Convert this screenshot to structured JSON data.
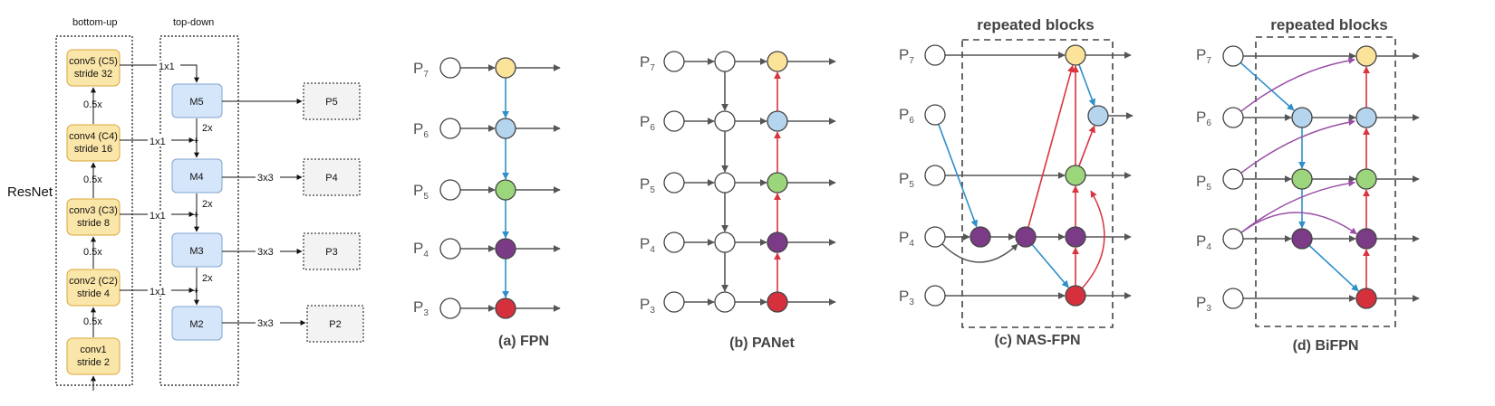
{
  "colors": {
    "yellow": "#fbe39a",
    "blue": "#b5d4ee",
    "green": "#9bd67c",
    "purple": "#7b3b86",
    "red": "#d7303d",
    "white": "#ffffff",
    "arrow_gray": "#555555",
    "arrow_blue": "#2e8fc9",
    "arrow_red": "#d9343f",
    "arrow_purple": "#9a4ea6",
    "box_yellow": "#fbe6a9",
    "box_yellow_border": "#d9a63a",
    "box_blue": "#d6e6fa",
    "box_blue_border": "#7fa4cf"
  },
  "resnet": {
    "label": "ResNet",
    "bottom_up_label": "bottom-up",
    "top_down_label": "top-down",
    "conv_blocks": [
      {
        "line1": "conv5 (C5)",
        "line2": "stride 32"
      },
      {
        "line1": "conv4 (C4)",
        "line2": "stride 16"
      },
      {
        "line1": "conv3 (C3)",
        "line2": "stride 8"
      },
      {
        "line1": "conv2 (C2)",
        "line2": "stride 4"
      },
      {
        "line1": "conv1",
        "line2": "stride 2"
      }
    ],
    "downsample_labels": [
      "0.5x",
      "0.5x",
      "0.5x",
      "0.5x"
    ],
    "lateral_labels": [
      "1x1",
      "1x1",
      "1x1",
      "1x1"
    ],
    "upsample_labels": [
      "2x",
      "2x",
      "2x"
    ],
    "plus_labels": [
      "+",
      "+",
      "+"
    ],
    "m_blocks": [
      "M5",
      "M4",
      "M3",
      "M2"
    ],
    "output_conv_labels": [
      "3x3",
      "3x3",
      "3x3"
    ],
    "p_blocks": [
      "P5",
      "P4",
      "P3",
      "P2"
    ]
  },
  "level_labels": [
    {
      "main": "P",
      "sub": "7"
    },
    {
      "main": "P",
      "sub": "6"
    },
    {
      "main": "P",
      "sub": "5"
    },
    {
      "main": "P",
      "sub": "4"
    },
    {
      "main": "P",
      "sub": "3"
    }
  ],
  "panels": {
    "fpn": {
      "caption": "(a) FPN"
    },
    "panet": {
      "caption": "(b) PANet"
    },
    "nasfpn": {
      "caption": "(c) NAS-FPN",
      "block_label": "repeated blocks"
    },
    "bifpn": {
      "caption": "(d) BiFPN",
      "block_label": "repeated blocks"
    }
  }
}
